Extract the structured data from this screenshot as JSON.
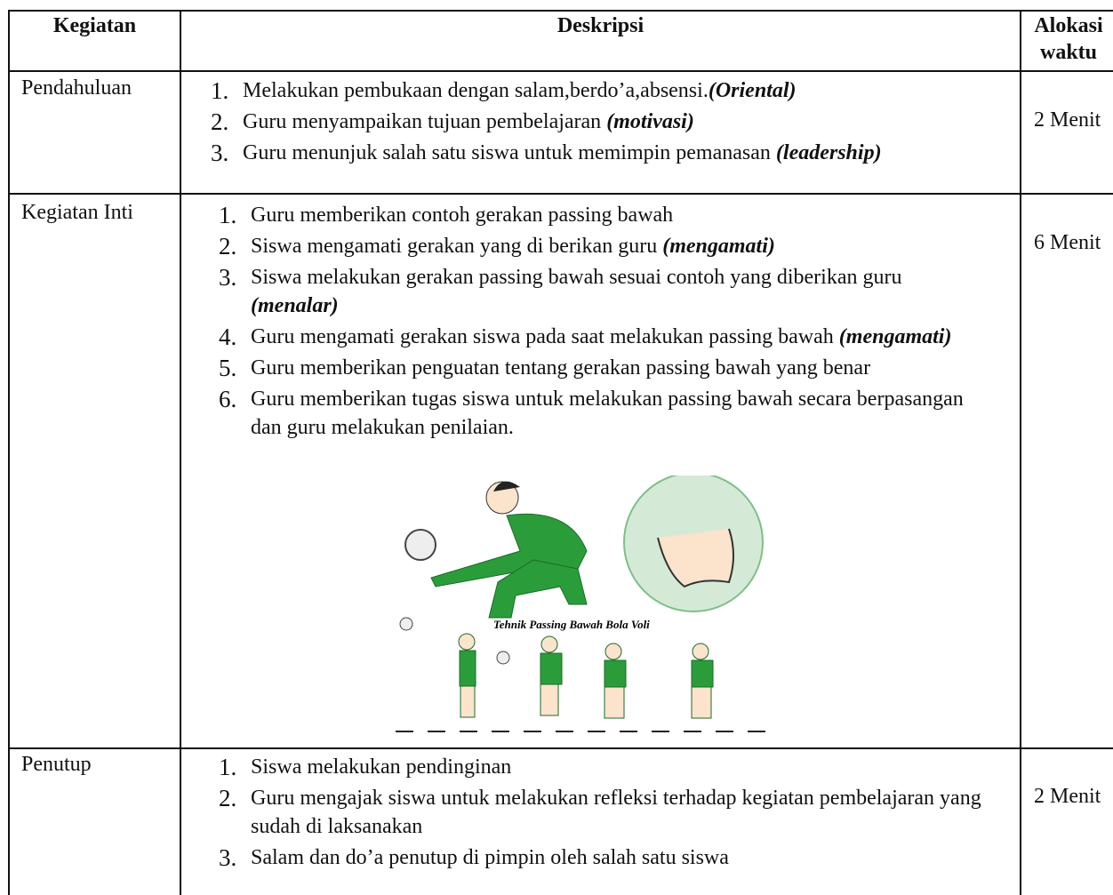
{
  "table": {
    "header": [
      "Kegiatan",
      "Deskripsi",
      "Alokasi waktu"
    ],
    "rows": [
      {
        "activity": "Pendahuluan",
        "time": "2 Menit",
        "items": [
          {
            "number": "1.",
            "text": "Melakukan pembukaan dengan salam,berdo’a,absensi.",
            "emphasis": "(Oriental)"
          },
          {
            "number": "2.",
            "text": "Guru menyampaikan tujuan pembelajaran ",
            "emphasis": "(motivasi)"
          },
          {
            "number": "3.",
            "text": "Guru menunjuk salah satu siswa untuk memimpin pemanasan ",
            "emphasis": "(leadership)"
          }
        ]
      },
      {
        "activity": "Kegiatan Inti",
        "time": "6 Menit",
        "items": [
          {
            "number": "1.",
            "text": "Guru memberikan contoh gerakan passing bawah"
          },
          {
            "number": "2.",
            "text": "Siswa mengamati gerakan yang di berikan guru ",
            "emphasis": "(mengamati)"
          },
          {
            "number": "3.",
            "text": "Siswa melakukan gerakan passing bawah sesuai contoh yang diberikan guru ",
            "emphasis": "(menalar)"
          },
          {
            "number": "4.",
            "text": "Guru mengamati gerakan siswa pada saat melakukan passing bawah ",
            "emphasis": "(mengamati)"
          },
          {
            "number": "5.",
            "text": "Guru memberikan penguatan tentang gerakan passing bawah yang benar"
          },
          {
            "number": "6.",
            "text": "Guru memberikan tugas siswa untuk melakukan passing bawah secara berpasangan dan guru melakukan penilaian."
          }
        ]
      },
      {
        "activity": "Penutup",
        "time": "2 Menit",
        "items": [
          {
            "number": "1.",
            "text": "Siswa melakukan pendinginan"
          },
          {
            "number": "2.",
            "text": "Guru mengajak siswa untuk melakukan refleksi terhadap kegiatan pembelajaran yang sudah di laksanakan"
          },
          {
            "number": "3.",
            "text": "Salam dan do’a penutup di pimpin oleh salah satu siswa"
          }
        ]
      }
    ]
  },
  "figure": {
    "caption": "Tehnik Passing Bawah Bola Voli"
  }
}
